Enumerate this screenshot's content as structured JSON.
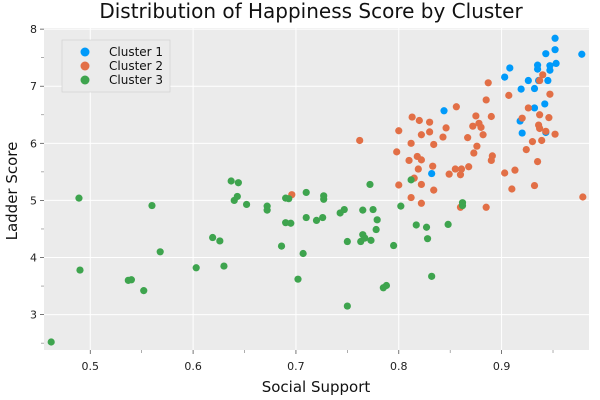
{
  "chart_data": {
    "type": "scatter",
    "title": "Distribution of Happiness Score by Cluster",
    "xlabel": "Social Support",
    "ylabel": "Ladder Score",
    "xlim": [
      0.455,
      0.985
    ],
    "ylim": [
      2.38,
      8.02
    ],
    "xticks": [
      0.5,
      0.6,
      0.7,
      0.8,
      0.9
    ],
    "xtick_labels": [
      "0.5",
      "0.6",
      "0.7",
      "0.8",
      "0.9"
    ],
    "yticks": [
      3,
      4,
      5,
      6,
      7,
      8
    ],
    "ytick_labels": [
      "3",
      "4",
      "5",
      "6",
      "7",
      "8"
    ],
    "grid": true,
    "legend_position": "top-left",
    "background_color": "#ebebeb",
    "series": [
      {
        "name": "Cluster 1",
        "color": "#009AFA",
        "points": [
          [
            0.952,
            7.84
          ],
          [
            0.978,
            7.56
          ],
          [
            0.952,
            7.64
          ],
          [
            0.943,
            7.57
          ],
          [
            0.953,
            7.4
          ],
          [
            0.947,
            7.36
          ],
          [
            0.935,
            7.37
          ],
          [
            0.935,
            7.3
          ],
          [
            0.908,
            7.32
          ],
          [
            0.903,
            7.16
          ],
          [
            0.926,
            7.1
          ],
          [
            0.936,
            7.1
          ],
          [
            0.945,
            7.1
          ],
          [
            0.947,
            7.28
          ],
          [
            0.919,
            6.95
          ],
          [
            0.932,
            6.96
          ],
          [
            0.942,
            6.69
          ],
          [
            0.932,
            6.62
          ],
          [
            0.918,
            6.39
          ],
          [
            0.92,
            6.18
          ],
          [
            0.943,
            6.19
          ],
          [
            0.844,
            6.57
          ],
          [
            0.832,
            5.47
          ]
        ]
      },
      {
        "name": "Cluster 2",
        "color": "#E26F46",
        "points": [
          [
            0.94,
            7.2
          ],
          [
            0.937,
            7.1
          ],
          [
            0.887,
            7.06
          ],
          [
            0.907,
            6.84
          ],
          [
            0.885,
            6.76
          ],
          [
            0.947,
            6.86
          ],
          [
            0.926,
            6.62
          ],
          [
            0.937,
            6.5
          ],
          [
            0.946,
            6.45
          ],
          [
            0.92,
            6.44
          ],
          [
            0.936,
            6.32
          ],
          [
            0.937,
            6.26
          ],
          [
            0.943,
            6.21
          ],
          [
            0.952,
            6.16
          ],
          [
            0.939,
            6.05
          ],
          [
            0.93,
            6.03
          ],
          [
            0.924,
            5.89
          ],
          [
            0.935,
            5.68
          ],
          [
            0.913,
            5.53
          ],
          [
            0.903,
            5.48
          ],
          [
            0.932,
            5.26
          ],
          [
            0.91,
            5.2
          ],
          [
            0.979,
            5.06
          ],
          [
            0.885,
            4.88
          ],
          [
            0.89,
            6.47
          ],
          [
            0.875,
            6.48
          ],
          [
            0.878,
            6.35
          ],
          [
            0.872,
            6.3
          ],
          [
            0.88,
            6.28
          ],
          [
            0.867,
            6.1
          ],
          [
            0.856,
            6.64
          ],
          [
            0.882,
            6.15
          ],
          [
            0.876,
            5.95
          ],
          [
            0.873,
            5.83
          ],
          [
            0.891,
            5.78
          ],
          [
            0.89,
            5.7
          ],
          [
            0.868,
            5.59
          ],
          [
            0.861,
            5.55
          ],
          [
            0.855,
            5.55
          ],
          [
            0.849,
            5.46
          ],
          [
            0.86,
            5.45
          ],
          [
            0.846,
            6.27
          ],
          [
            0.843,
            6.11
          ],
          [
            0.83,
            6.37
          ],
          [
            0.82,
            6.4
          ],
          [
            0.813,
            6.46
          ],
          [
            0.83,
            6.2
          ],
          [
            0.822,
            6.15
          ],
          [
            0.8,
            6.22
          ],
          [
            0.812,
            6.0
          ],
          [
            0.834,
            5.98
          ],
          [
            0.798,
            5.85
          ],
          [
            0.818,
            5.77
          ],
          [
            0.822,
            5.71
          ],
          [
            0.81,
            5.7
          ],
          [
            0.833,
            5.6
          ],
          [
            0.819,
            5.55
          ],
          [
            0.8,
            5.27
          ],
          [
            0.815,
            5.39
          ],
          [
            0.822,
            5.28
          ],
          [
            0.834,
            5.18
          ],
          [
            0.812,
            5.05
          ],
          [
            0.822,
            4.95
          ],
          [
            0.762,
            6.05
          ],
          [
            0.696,
            5.1
          ],
          [
            0.86,
            4.88
          ]
        ]
      },
      {
        "name": "Cluster 3",
        "color": "#3EA44E",
        "points": [
          [
            0.462,
            2.52
          ],
          [
            0.489,
            5.04
          ],
          [
            0.49,
            3.78
          ],
          [
            0.537,
            3.6
          ],
          [
            0.54,
            3.61
          ],
          [
            0.552,
            3.42
          ],
          [
            0.56,
            4.91
          ],
          [
            0.568,
            4.1
          ],
          [
            0.603,
            3.82
          ],
          [
            0.619,
            4.35
          ],
          [
            0.626,
            4.29
          ],
          [
            0.63,
            3.85
          ],
          [
            0.637,
            5.34
          ],
          [
            0.644,
            5.31
          ],
          [
            0.64,
            5.0
          ],
          [
            0.643,
            5.07
          ],
          [
            0.652,
            4.93
          ],
          [
            0.672,
            4.9
          ],
          [
            0.672,
            4.83
          ],
          [
            0.686,
            4.2
          ],
          [
            0.69,
            4.61
          ],
          [
            0.69,
            5.04
          ],
          [
            0.693,
            5.03
          ],
          [
            0.695,
            4.6
          ],
          [
            0.702,
            3.62
          ],
          [
            0.707,
            4.07
          ],
          [
            0.71,
            4.7
          ],
          [
            0.71,
            5.14
          ],
          [
            0.72,
            4.65
          ],
          [
            0.726,
            4.7
          ],
          [
            0.727,
            5.08
          ],
          [
            0.727,
            5.02
          ],
          [
            0.743,
            4.78
          ],
          [
            0.747,
            4.84
          ],
          [
            0.75,
            4.28
          ],
          [
            0.75,
            3.15
          ],
          [
            0.763,
            4.28
          ],
          [
            0.765,
            4.83
          ],
          [
            0.765,
            4.4
          ],
          [
            0.767,
            4.34
          ],
          [
            0.772,
            5.28
          ],
          [
            0.773,
            4.3
          ],
          [
            0.775,
            4.84
          ],
          [
            0.778,
            4.49
          ],
          [
            0.779,
            4.66
          ],
          [
            0.785,
            3.47
          ],
          [
            0.788,
            3.51
          ],
          [
            0.795,
            4.21
          ],
          [
            0.802,
            4.9
          ],
          [
            0.812,
            5.36
          ],
          [
            0.817,
            4.57
          ],
          [
            0.827,
            4.53
          ],
          [
            0.828,
            4.33
          ],
          [
            0.832,
            3.67
          ],
          [
            0.848,
            4.58
          ],
          [
            0.862,
            4.96
          ],
          [
            0.862,
            4.91
          ]
        ]
      }
    ]
  }
}
